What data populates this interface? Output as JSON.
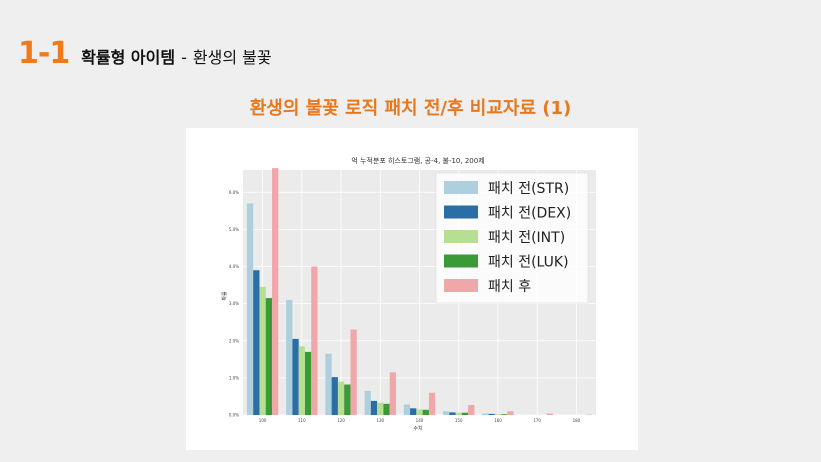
{
  "slide": {
    "number": "1-1",
    "title_bold": "확률형 아이템",
    "title_sep": "-",
    "title_sub": "환생의 불꽃",
    "heading": "환생의 불꽃 로직 패치 전/후 비교자료 (1)"
  },
  "colors": {
    "accent": "#f07a1a",
    "heading": "#e8781c"
  },
  "chart_data": {
    "type": "bar",
    "title": "억 누적분포 히스토그램, 공-4, 불-10, 200제",
    "xlabel": "수치",
    "ylabel": "확률",
    "categories": [
      "100",
      "110",
      "120",
      "130",
      "140",
      "150",
      "160",
      "170",
      "180"
    ],
    "yticks": [
      "0.0%",
      "1.0%",
      "2.0%",
      "3.0%",
      "4.0%",
      "5.0%",
      "6.0%"
    ],
    "ylim": [
      0,
      6.6
    ],
    "grid": true,
    "legend_position": "top-right",
    "series": [
      {
        "name": "패치 전(STR)",
        "color": "#aecfdd",
        "values": [
          5.7,
          3.1,
          1.65,
          0.65,
          0.28,
          0.1,
          0.04,
          0.0,
          0.0
        ]
      },
      {
        "name": "패치 전(DEX)",
        "color": "#2b6ea6",
        "values": [
          3.9,
          2.05,
          1.02,
          0.38,
          0.18,
          0.07,
          0.03,
          0.0,
          0.0
        ]
      },
      {
        "name": "패치 전(INT)",
        "color": "#b7df92",
        "values": [
          3.45,
          1.85,
          0.9,
          0.33,
          0.15,
          0.06,
          0.02,
          0.0,
          0.0
        ]
      },
      {
        "name": "패치 전(LUK)",
        "color": "#3a9a35",
        "values": [
          3.15,
          1.7,
          0.82,
          0.3,
          0.14,
          0.06,
          0.02,
          0.0,
          0.0
        ]
      },
      {
        "name": "패치 후",
        "color": "#f0a7a9",
        "values": [
          6.65,
          4.0,
          2.3,
          1.15,
          0.6,
          0.27,
          0.1,
          0.04,
          0.01
        ]
      }
    ]
  }
}
